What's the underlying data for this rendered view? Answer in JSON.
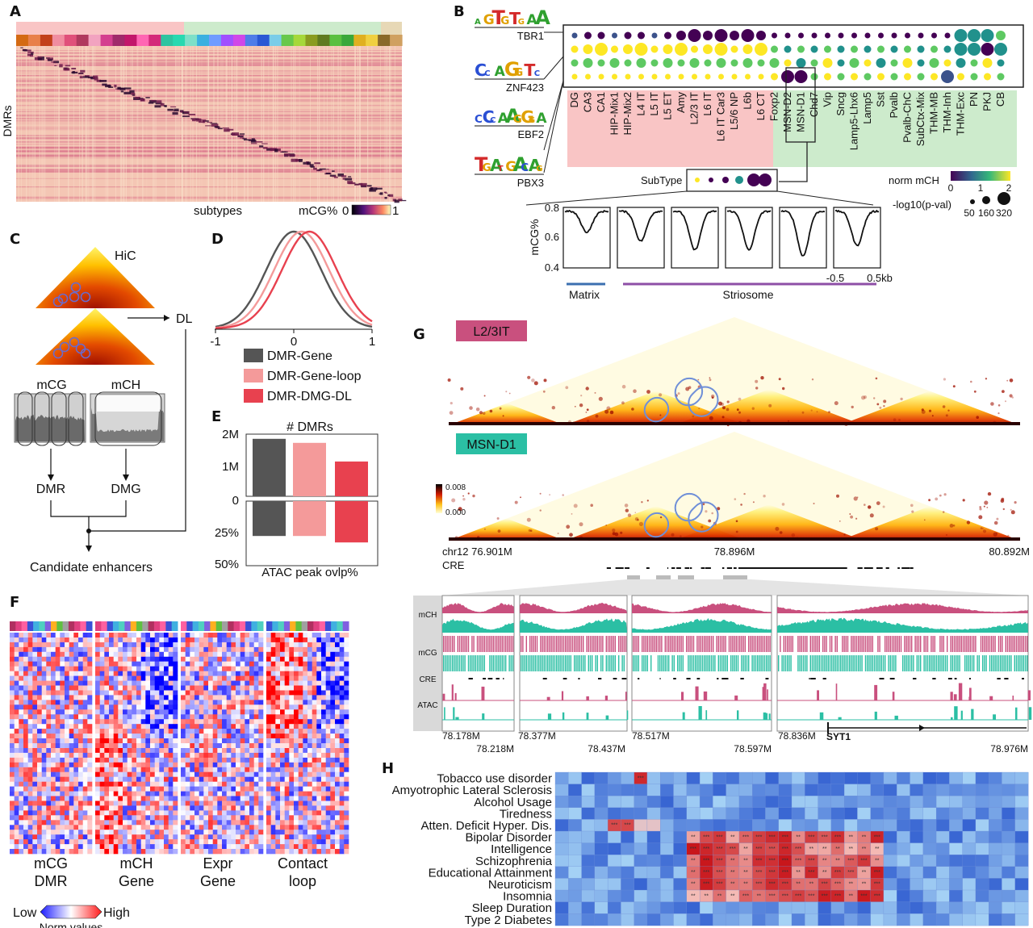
{
  "colors": {
    "neuron_ex": "#f9c5c5",
    "neuron_inh": "#cdebcc",
    "nonneuron": "#e7d8b6",
    "mch_track": "#c9507e",
    "mcg_track": "#2bbfa4",
    "gene": "#555555",
    "loop": "#f49a9a",
    "dl": "#e8414f",
    "matrix": "#3b6fb0",
    "striosome": "#8e4fa6"
  },
  "panelA": {
    "label": "A",
    "ylabel": "DMRs",
    "xlabel": "subtypes",
    "cbar_label": "mCG%",
    "cbar_min": "0",
    "cbar_max": "1"
  },
  "panelB": {
    "label": "B",
    "motifs": [
      {
        "name": "TBR1",
        "logo": "AGTGTGAA"
      },
      {
        "name": "ZNF423",
        "logo": "CCAGGTC"
      },
      {
        "name": "EBF2",
        "logo": "CCCAAGGGA"
      },
      {
        "name": "PBX3",
        "logo": "TGATGACAG"
      }
    ],
    "subtypes": [
      "DG",
      "CA3",
      "CA1",
      "HIP-Mix1",
      "HIP-Mix2",
      "L4 IT",
      "L5 IT",
      "L5 ET",
      "Amy",
      "L2/3 IT",
      "L6 IT",
      "L6 IT Car3",
      "L5/6 NP",
      "L6b",
      "L6 CT",
      "Foxp2",
      "MSN-D2",
      "MSN-D1",
      "Chd7",
      "Vip",
      "Sncg",
      "Lamp5-Lhx6",
      "Lamp5",
      "Sst",
      "Pvalb",
      "Pvalb-ChC",
      "SubCtx-Mix",
      "THM-MB",
      "THM-Inh",
      "THM-Exc",
      "PN",
      "PKJ",
      "CB"
    ],
    "subtype_box_label": "SubType",
    "norm_label": "norm mCH",
    "norm_ticks": [
      "0",
      "1",
      "2"
    ],
    "pval_label": "-log10(p-val)",
    "pval_ticks": [
      "50",
      "160",
      "320"
    ],
    "profile_ylabel": "mCG%",
    "profile_yticks": [
      "0.8",
      "0.6",
      "0.4"
    ],
    "profile_xticks": [
      "-0.5",
      "0.5kb"
    ],
    "matrix_label": "Matrix",
    "striosome_label": "Striosome",
    "profile_minima": [
      0.64,
      0.58,
      0.52,
      0.52,
      0.48,
      0.55
    ]
  },
  "panelC": {
    "label": "C",
    "hic_label": "HiC",
    "dl_label": "DL",
    "mcg_label": "mCG",
    "mch_label": "mCH",
    "dmr_label": "DMR",
    "dmg_label": "DMG",
    "result_label": "Candidate enhancers"
  },
  "panelD": {
    "label": "D",
    "xticks": [
      "-1",
      "0",
      "1"
    ],
    "legend": [
      "DMR-Gene",
      "DMR-Gene-loop",
      "DMR-DMG-DL"
    ],
    "centers": [
      0.0,
      0.1,
      0.2
    ]
  },
  "panelE": {
    "label": "E",
    "title": "# DMRs",
    "top_ticks": [
      "2M",
      "1M",
      "0"
    ],
    "bottom_ticks": [
      "25%",
      "50%"
    ],
    "xlabel": "ATAC peak ovlp%",
    "dmr_counts_millions": [
      1.85,
      1.72,
      1.12
    ],
    "atac_overlap_percent": [
      27,
      27,
      32
    ]
  },
  "panelF": {
    "label": "F",
    "columns": [
      "mCG DMR",
      "mCH Gene",
      "Expr Gene",
      "Contact loop"
    ],
    "col_line1": [
      "mCG",
      "mCH",
      "Expr",
      "Contact"
    ],
    "col_line2": [
      "DMR",
      "Gene",
      "Gene",
      "loop"
    ],
    "legend_low": "Low",
    "legend_high": "High",
    "legend_title": "Norm values"
  },
  "panelG": {
    "label": "G",
    "celltype1": "L2/3IT",
    "celltype2": "MSN-D1",
    "cbar_max": "0.008",
    "cbar_min": "0.000",
    "coord_left": "chr12 76.901M",
    "coord_mid": "78.896M",
    "coord_right": "80.892M",
    "cre_label": "CRE",
    "track_labels": [
      "mCH",
      "mCG",
      "CRE",
      "ATAC"
    ],
    "zoom_ticks_top": [
      "78.178M",
      "78.377M",
      "78.517M",
      "78.836M"
    ],
    "zoom_ticks_bottom": [
      "78.218M",
      "78.437M",
      "78.597M",
      "78.976M"
    ],
    "gene_label": "SYT1"
  },
  "panelH": {
    "label": "H",
    "traits": [
      "Tobacco use disorder",
      "Amyotrophic Lateral Sclerosis",
      "Alcohol Usage",
      "Tiredness",
      "Atten. Deficit Hyper. Dis.",
      "Bipolar Disorder",
      "Intelligence",
      "Schizophrenia",
      "Educational Attainment",
      "Neuroticism",
      "Insomnia",
      "Sleep Duration",
      "Type 2 Diabetes"
    ]
  }
}
